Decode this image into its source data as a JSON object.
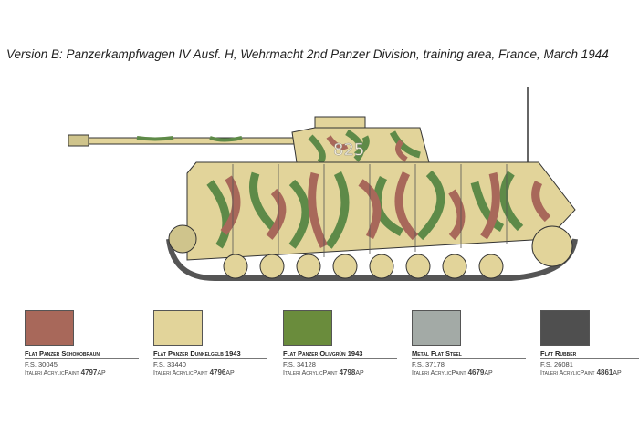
{
  "caption": "Version B: Panzerkampfwagen IV Ausf. H, Wehrmacht 2nd Panzer Division, training area, France, March 1944",
  "turret_number": "825",
  "camo_colors": {
    "base": "#e2d49a",
    "green": "#5e8a48",
    "brown": "#a8685a",
    "steel": "#9aa39e",
    "rubber": "#4e4e4e"
  },
  "swatches": [
    {
      "name": "Flat Panzer Schokobraun",
      "fs": "F.S. 30045",
      "brand": "Italeri AcrylicPaint",
      "code": "4797",
      "suffix": "AP",
      "color": "#a8685a"
    },
    {
      "name": "Flat Panzer Dunkelgelb 1943",
      "fs": "F.S. 33440",
      "brand": "Italeri AcrylicPaint",
      "code": "4796",
      "suffix": "AP",
      "color": "#e2d49a"
    },
    {
      "name": "Flat Panzer Olivgrün 1943",
      "fs": "F.S. 34128",
      "brand": "Italeri AcrylicPaint",
      "code": "4798",
      "suffix": "AP",
      "color": "#6a8c3c"
    },
    {
      "name": "Metal Flat Steel",
      "fs": "F.S. 37178",
      "brand": "Italeri AcrylicPaint",
      "code": "4679",
      "suffix": "AP",
      "color": "#a3aaa6"
    },
    {
      "name": "Flat Rubber",
      "fs": "F.S. 26081",
      "brand": "Italeri AcrylicPaint",
      "code": "4861",
      "suffix": "AP",
      "color": "#4f4f4f"
    }
  ]
}
